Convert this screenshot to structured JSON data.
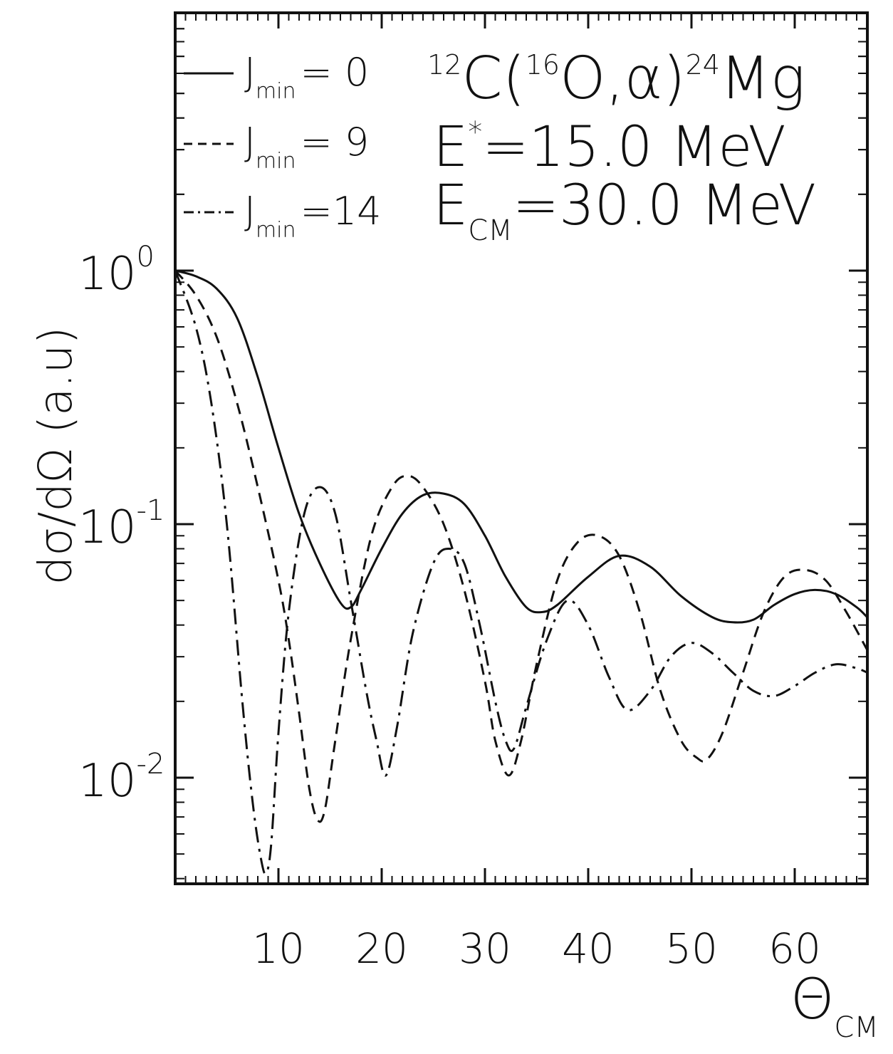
{
  "chart_data": {
    "type": "line",
    "title": "¹²C(¹⁶O,α)²⁴Mg",
    "annotations": [
      "E* = 15.0 MeV",
      "E_CM = 30.0 MeV"
    ],
    "xlabel": "Θ_CM",
    "ylabel": "dσ/dΩ (a.u)",
    "y_scale": "log",
    "xlim": [
      0,
      67
    ],
    "ylim": [
      0.004,
      10
    ],
    "grid": false,
    "legend_position": "top-left",
    "x_ticks": [
      10,
      20,
      30,
      40,
      50,
      60
    ],
    "y_ticks": [
      {
        "value": 1,
        "base": "10",
        "exp": "0"
      },
      {
        "value": 0.1,
        "base": "10",
        "exp": "-1"
      },
      {
        "value": 0.01,
        "base": "10",
        "exp": "-2"
      }
    ],
    "series": [
      {
        "name": "J_min = 0",
        "dash": "solid",
        "x": [
          0,
          2,
          4,
          6,
          8,
          10,
          12,
          14,
          16,
          17,
          18,
          20,
          22,
          24,
          26,
          28,
          30,
          32,
          34,
          35.5,
          37,
          40,
          43,
          46,
          49,
          52,
          54,
          56,
          58,
          60,
          62,
          64,
          66,
          67
        ],
        "y": [
          1.0,
          0.95,
          0.85,
          0.65,
          0.38,
          0.2,
          0.11,
          0.07,
          0.049,
          0.047,
          0.055,
          0.08,
          0.11,
          0.13,
          0.132,
          0.12,
          0.09,
          0.062,
          0.047,
          0.045,
          0.048,
          0.062,
          0.075,
          0.068,
          0.052,
          0.043,
          0.041,
          0.042,
          0.048,
          0.053,
          0.055,
          0.053,
          0.047,
          0.043
        ]
      },
      {
        "name": "J_min = 9",
        "dash": "dashed",
        "x": [
          0,
          2,
          4,
          6,
          8,
          10,
          11,
          12,
          13,
          13.8,
          14.5,
          15.5,
          17,
          19,
          21,
          22.5,
          24,
          26,
          28,
          30,
          31,
          32.3,
          33.5,
          35,
          37,
          39,
          41,
          43,
          45,
          47,
          49,
          50.5,
          51.5,
          53,
          55,
          57,
          59,
          61,
          63,
          65,
          67
        ],
        "y": [
          1.0,
          0.8,
          0.55,
          0.3,
          0.14,
          0.06,
          0.035,
          0.018,
          0.009,
          0.0068,
          0.0075,
          0.014,
          0.035,
          0.09,
          0.14,
          0.155,
          0.14,
          0.1,
          0.055,
          0.024,
          0.014,
          0.0102,
          0.014,
          0.028,
          0.06,
          0.085,
          0.09,
          0.075,
          0.045,
          0.022,
          0.014,
          0.012,
          0.0118,
          0.015,
          0.026,
          0.045,
          0.062,
          0.066,
          0.06,
          0.045,
          0.032
        ]
      },
      {
        "name": "J_min = 14",
        "dash": "dash-dot",
        "x": [
          0,
          2,
          3.5,
          5,
          6.5,
          7.5,
          8.3,
          8.8,
          9.3,
          10,
          11,
          12.5,
          14,
          15.5,
          17,
          18.5,
          19.5,
          20.4,
          21.5,
          23,
          25,
          26.5,
          28,
          29.5,
          31,
          32,
          32.8,
          34,
          36,
          38,
          40,
          42,
          43.8,
          46,
          48,
          50,
          52,
          54,
          56,
          58,
          60,
          62,
          64,
          66,
          67
        ],
        "y": [
          1.0,
          0.6,
          0.3,
          0.1,
          0.02,
          0.008,
          0.0048,
          0.0042,
          0.0055,
          0.015,
          0.045,
          0.11,
          0.14,
          0.11,
          0.05,
          0.022,
          0.014,
          0.0102,
          0.016,
          0.037,
          0.07,
          0.08,
          0.07,
          0.04,
          0.02,
          0.014,
          0.013,
          0.019,
          0.035,
          0.05,
          0.04,
          0.025,
          0.0185,
          0.022,
          0.03,
          0.034,
          0.031,
          0.026,
          0.022,
          0.021,
          0.023,
          0.026,
          0.028,
          0.027,
          0.026
        ]
      }
    ]
  },
  "legend": [
    {
      "text": "J",
      "sub": "min",
      "value": "= 0"
    },
    {
      "text": "J",
      "sub": "min",
      "value": "= 9"
    },
    {
      "text": "J",
      "sub": "min",
      "value": "=14"
    }
  ],
  "title_parts": {
    "pre1": "12",
    "c": "C(",
    "pre2": "16",
    "o": "O,α)",
    "pre3": "24",
    "mg": "Mg"
  },
  "annot1": {
    "e": "E",
    "star": "*",
    "rest": "=15.0 MeV"
  },
  "annot2": {
    "e": "E",
    "sub": "CM",
    "rest": "=30.0 MeV"
  },
  "ylabel_text": "dσ/dΩ (a.u)",
  "xlabel_parts": {
    "theta": "Θ",
    "sub": "CM"
  },
  "colors": {
    "ink": "#111111",
    "background": "#ffffff"
  }
}
